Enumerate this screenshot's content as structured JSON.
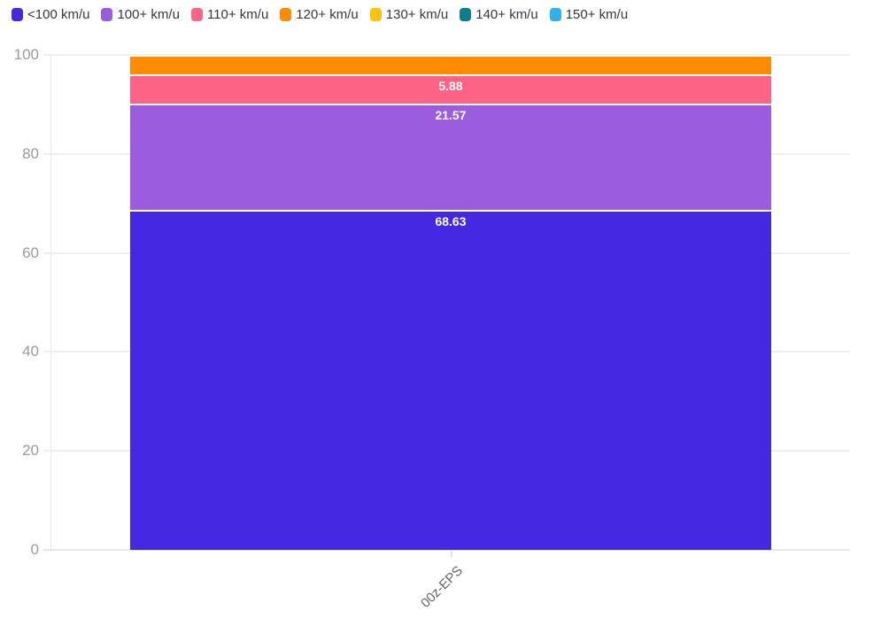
{
  "legend": {
    "items": [
      {
        "label": "<100 km/u",
        "color": "#4428e2"
      },
      {
        "label": "100+ km/u",
        "color": "#9b5ce0"
      },
      {
        "label": "110+ km/u",
        "color": "#fd6384"
      },
      {
        "label": "120+ km/u",
        "color": "#ff8c00"
      },
      {
        "label": "130+ km/u",
        "color": "#fec40d"
      },
      {
        "label": "140+ km/u",
        "color": "#0e7d8e"
      },
      {
        "label": "150+ km/u",
        "color": "#2db1f1"
      }
    ]
  },
  "y_axis": {
    "ticks": [
      100,
      80,
      60,
      40,
      20,
      0
    ]
  },
  "chart_data": {
    "type": "bar",
    "stacked": true,
    "title": "",
    "xlabel": "",
    "ylabel": "",
    "ylim": [
      0,
      100
    ],
    "grid": true,
    "legend_position": "top",
    "categories": [
      "00z-EPS"
    ],
    "series": [
      {
        "name": "<100 km/u",
        "values": [
          68.63
        ],
        "color": "#4428e2",
        "label_visible": true
      },
      {
        "name": "100+ km/u",
        "values": [
          21.57
        ],
        "color": "#9b5ce0",
        "label_visible": true
      },
      {
        "name": "110+ km/u",
        "values": [
          5.88
        ],
        "color": "#fd6384",
        "label_visible": true
      },
      {
        "name": "120+ km/u",
        "values": [
          3.92
        ],
        "color": "#ff8c00",
        "label_visible": false
      },
      {
        "name": "130+ km/u",
        "values": [
          0
        ],
        "color": "#fec40d",
        "label_visible": false
      },
      {
        "name": "140+ km/u",
        "values": [
          0
        ],
        "color": "#0e7d8e",
        "label_visible": false
      },
      {
        "name": "150+ km/u",
        "values": [
          0
        ],
        "color": "#2db1f1",
        "label_visible": false
      }
    ]
  }
}
